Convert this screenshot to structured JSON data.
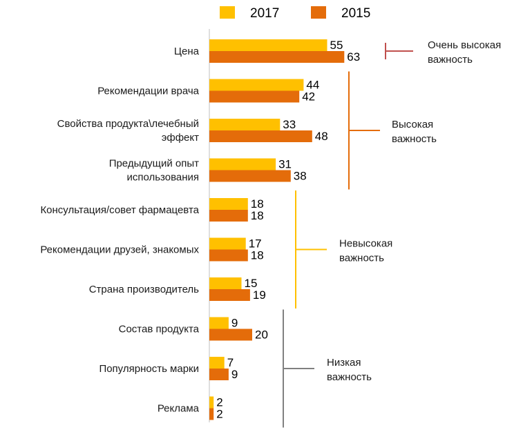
{
  "colors": {
    "series_2017": "#FFC000",
    "series_2015": "#E46C0A",
    "axis": "#bfbfbf",
    "bracket_very_high": "#C0504D",
    "bracket_high": "#E46C0A",
    "bracket_not_high": "#FFC000",
    "bracket_low": "#808080"
  },
  "chart_data": {
    "type": "bar",
    "orientation": "horizontal",
    "categories": [
      [
        "Цена"
      ],
      [
        "Рекомендации врача"
      ],
      [
        "Свойства продукта\\лечебный",
        "эффект"
      ],
      [
        "Предыдущий опыт",
        "использования"
      ],
      [
        "Консультация/совет фармацевта"
      ],
      [
        "Рекомендации друзей, знакомых"
      ],
      [
        "Страна производитель"
      ],
      [
        "Состав продукта"
      ],
      [
        "Популярность марки"
      ],
      [
        "Реклама"
      ]
    ],
    "series": [
      {
        "name": "2017",
        "values": [
          55,
          44,
          33,
          31,
          18,
          17,
          15,
          9,
          7,
          2
        ]
      },
      {
        "name": "2015",
        "values": [
          63,
          42,
          48,
          38,
          18,
          18,
          19,
          20,
          9,
          2
        ]
      }
    ],
    "legend": {
      "position": "top",
      "entries": [
        "2017",
        "2015"
      ]
    },
    "grid": false,
    "groups": [
      {
        "label": [
          "Очень высокая",
          "важность"
        ],
        "from": 0,
        "to": 0,
        "color_key": "bracket_very_high",
        "style": "short"
      },
      {
        "label": [
          "Высокая",
          "важность"
        ],
        "from": 1,
        "to": 3,
        "color_key": "bracket_high",
        "style": "long"
      },
      {
        "label": [
          "Невысокая",
          "важность"
        ],
        "from": 4,
        "to": 6,
        "color_key": "bracket_not_high",
        "style": "long"
      },
      {
        "label": [
          "Низкая",
          "важность"
        ],
        "from": 7,
        "to": 9,
        "color_key": "bracket_low",
        "style": "long"
      }
    ]
  }
}
